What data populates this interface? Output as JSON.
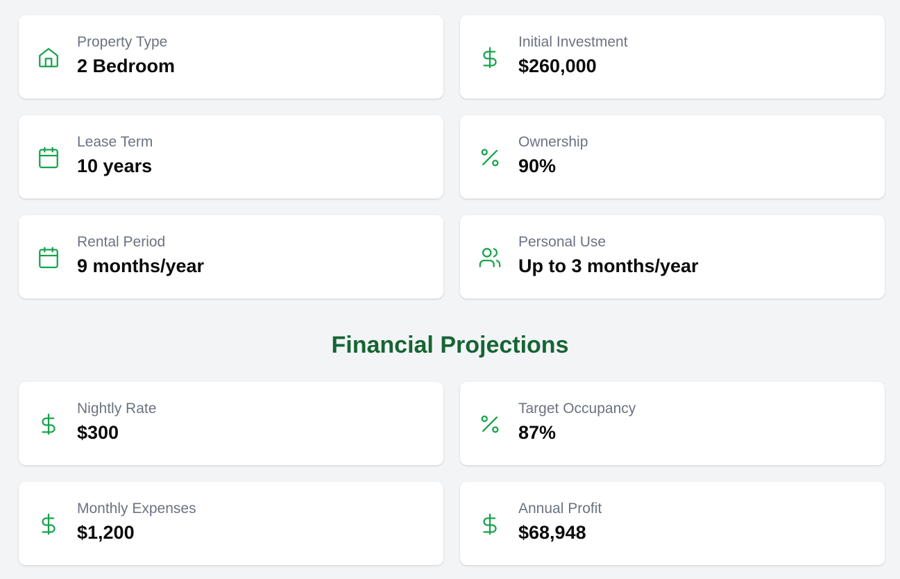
{
  "details": {
    "property_type": {
      "label": "Property Type",
      "value": "2 Bedroom",
      "icon": "home-icon"
    },
    "initial_investment": {
      "label": "Initial Investment",
      "value": "$260,000",
      "icon": "dollar-icon"
    },
    "lease_term": {
      "label": "Lease Term",
      "value": "10 years",
      "icon": "calendar-icon"
    },
    "ownership": {
      "label": "Ownership",
      "value": "90%",
      "icon": "percent-icon"
    },
    "rental_period": {
      "label": "Rental Period",
      "value": "9 months/year",
      "icon": "calendar-icon"
    },
    "personal_use": {
      "label": "Personal Use",
      "value": "Up to 3 months/year",
      "icon": "users-icon"
    }
  },
  "projections": {
    "title": "Financial Projections",
    "nightly_rate": {
      "label": "Nightly Rate",
      "value": "$300",
      "icon": "dollar-icon"
    },
    "target_occupancy": {
      "label": "Target Occupancy",
      "value": "87%",
      "icon": "percent-icon"
    },
    "monthly_expenses": {
      "label": "Monthly Expenses",
      "value": "$1,200",
      "icon": "dollar-icon"
    },
    "annual_profit": {
      "label": "Annual Profit",
      "value": "$68,948",
      "icon": "dollar-icon"
    }
  },
  "colors": {
    "accent": "#16a34a",
    "title": "#166534",
    "label": "#6b7280",
    "background": "#f3f4f6"
  }
}
